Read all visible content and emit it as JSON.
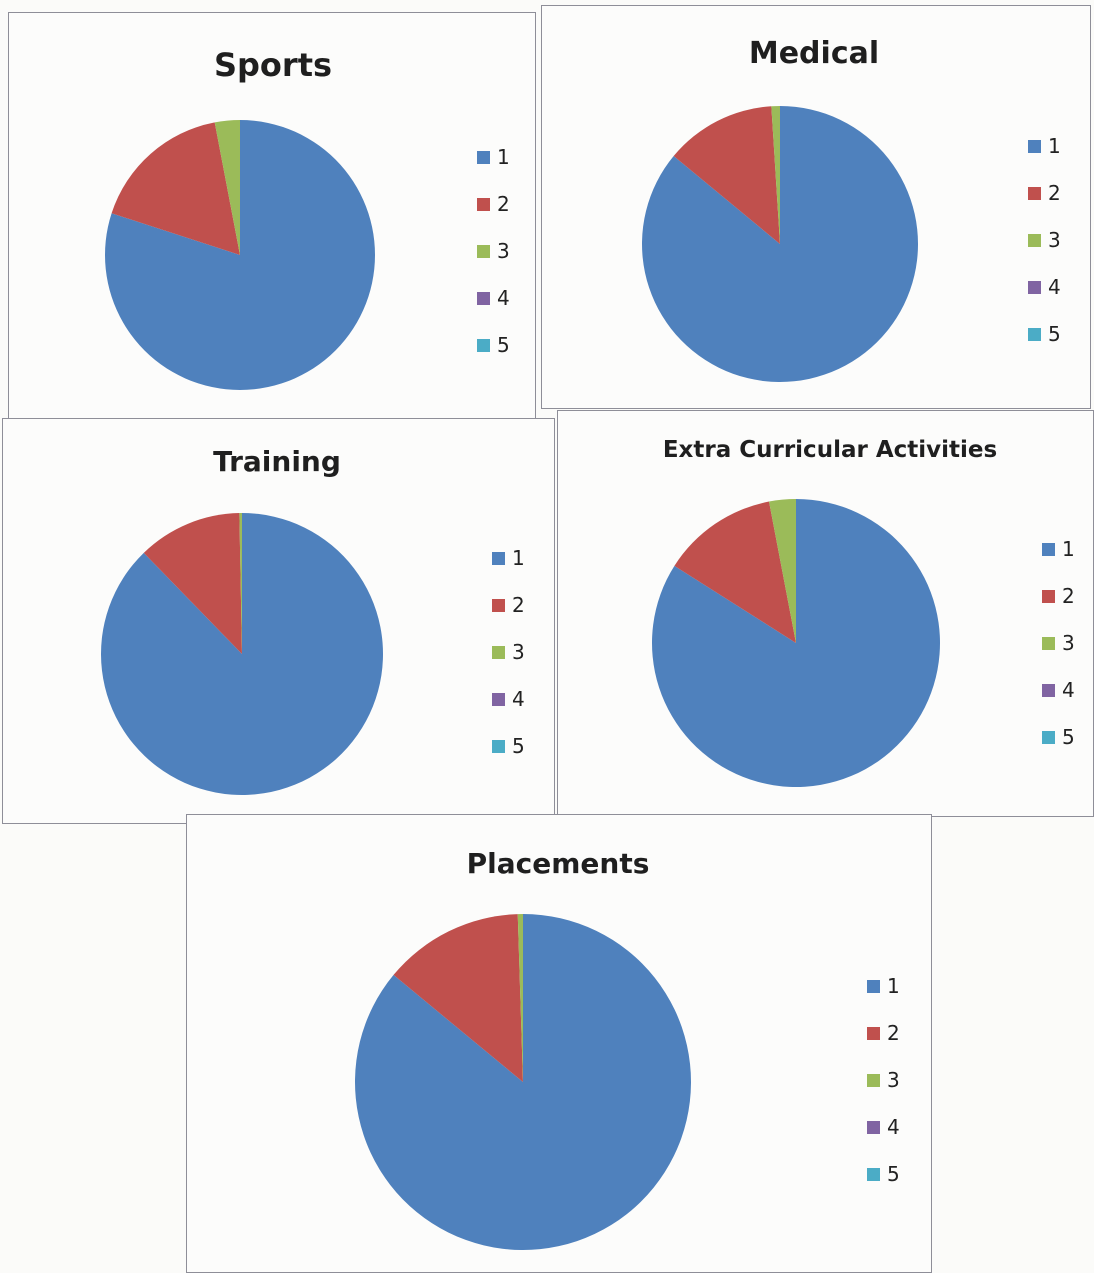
{
  "colors": {
    "1": "#4f81bd",
    "2": "#c0504d",
    "3": "#9bbb59",
    "4": "#8064a2",
    "5": "#4bacc6"
  },
  "chart_data": [
    {
      "type": "pie",
      "title": "Sports",
      "categories": [
        "1",
        "2",
        "3",
        "4",
        "5"
      ],
      "values": [
        80,
        17,
        3,
        0,
        0
      ]
    },
    {
      "type": "pie",
      "title": "Medical",
      "categories": [
        "1",
        "2",
        "3",
        "4",
        "5"
      ],
      "values": [
        86,
        13,
        1,
        0,
        0
      ]
    },
    {
      "type": "pie",
      "title": "Training",
      "categories": [
        "1",
        "2",
        "3",
        "4",
        "5"
      ],
      "values": [
        88,
        12,
        0.3,
        0,
        0
      ]
    },
    {
      "type": "pie",
      "title": "Extra Curricular Activities",
      "categories": [
        "1",
        "2",
        "3",
        "4",
        "5"
      ],
      "values": [
        84,
        13,
        3,
        0,
        0
      ]
    },
    {
      "type": "pie",
      "title": "Placements",
      "categories": [
        "1",
        "2",
        "3",
        "4",
        "5"
      ],
      "values": [
        86,
        13.5,
        0.5,
        0,
        0
      ]
    }
  ]
}
